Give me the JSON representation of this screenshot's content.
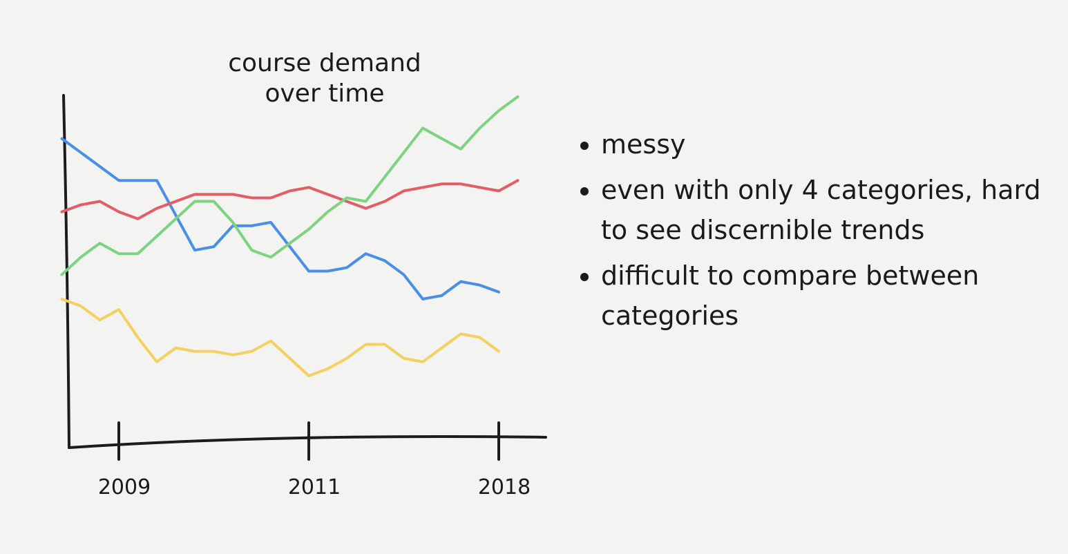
{
  "chart_data": {
    "type": "line",
    "title": "course demand over time",
    "categories": [
      null,
      null,
      null,
      "2009",
      null,
      null,
      null,
      null,
      null,
      null,
      null,
      null,
      null,
      "2011",
      null,
      null,
      null,
      null,
      null,
      null,
      null,
      null,
      null,
      "2018",
      null
    ],
    "ylim": [
      0,
      100
    ],
    "series": [
      {
        "color": "#4a8fe7",
        "values": [
          88,
          84,
          80,
          76,
          76,
          76,
          66,
          56,
          57,
          63,
          63,
          64,
          57,
          50,
          50,
          51,
          55,
          53,
          49,
          42,
          43,
          47,
          46,
          44,
          null
        ]
      },
      {
        "color": "#e35d66",
        "values": [
          67,
          69,
          70,
          67,
          65,
          68,
          70,
          72,
          72,
          72,
          71,
          71,
          73,
          74,
          72,
          70,
          68,
          70,
          73,
          74,
          75,
          75,
          74,
          73,
          76
        ]
      },
      {
        "color": "#7dd37f",
        "values": [
          49,
          54,
          58,
          55,
          55,
          60,
          65,
          70,
          70,
          64,
          56,
          54,
          58,
          62,
          67,
          71,
          70,
          77,
          84,
          91,
          88,
          85,
          91,
          96,
          100
        ]
      },
      {
        "color": "#f5cf5f",
        "values": [
          42,
          40,
          36,
          39,
          31,
          24,
          28,
          27,
          27,
          26,
          27,
          30,
          25,
          20,
          22,
          25,
          29,
          29,
          25,
          24,
          28,
          32,
          31,
          27,
          null
        ]
      }
    ],
    "annotations": [
      "messy",
      "even with only 4 categories, hard to see discernible trends",
      "difficult to compare between categories"
    ]
  }
}
